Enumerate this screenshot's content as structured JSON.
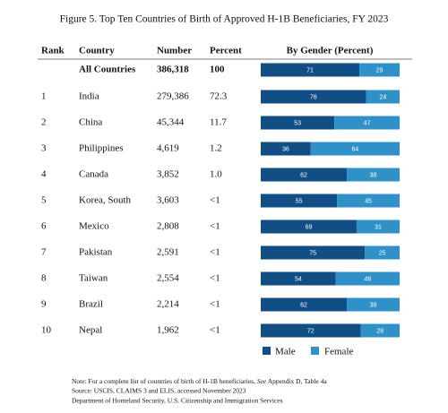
{
  "title": "Figure 5. Top Ten Countries of Birth of Approved H-1B Beneficiaries, FY 2023",
  "headers": {
    "rank": "Rank",
    "country": "Country",
    "number": "Number",
    "percent": "Percent",
    "gender": "By Gender (Percent)"
  },
  "total": {
    "country": "All Countries",
    "number": "386,318",
    "percent": "100",
    "male": 71,
    "female": 29
  },
  "rows": [
    {
      "rank": "1",
      "country": "India",
      "number": "279,386",
      "percent": "72.3",
      "male": 76,
      "female": 24
    },
    {
      "rank": "2",
      "country": "China",
      "number": "45,344",
      "percent": "11.7",
      "male": 53,
      "female": 47
    },
    {
      "rank": "3",
      "country": "Philippines",
      "number": "4,619",
      "percent": "1.2",
      "male": 36,
      "female": 64
    },
    {
      "rank": "4",
      "country": "Canada",
      "number": "3,852",
      "percent": "1.0",
      "male": 62,
      "female": 38
    },
    {
      "rank": "5",
      "country": "Korea, South",
      "number": "3,603",
      "percent": "<1",
      "male": 55,
      "female": 45
    },
    {
      "rank": "6",
      "country": "Mexico",
      "number": "2,808",
      "percent": "<1",
      "male": 69,
      "female": 31
    },
    {
      "rank": "7",
      "country": "Pakistan",
      "number": "2,591",
      "percent": "<1",
      "male": 75,
      "female": 25
    },
    {
      "rank": "8",
      "country": "Taiwan",
      "number": "2,554",
      "percent": "<1",
      "male": 54,
      "female": 46
    },
    {
      "rank": "9",
      "country": "Brazil",
      "number": "2,214",
      "percent": "<1",
      "male": 62,
      "female": 38
    },
    {
      "rank": "10",
      "country": "Nepal",
      "number": "1,962",
      "percent": "<1",
      "male": 72,
      "female": 28
    }
  ],
  "legend": {
    "male": {
      "label": "Male",
      "color": "#104e85"
    },
    "female": {
      "label": "Female",
      "color": "#2f91c8"
    }
  },
  "note": {
    "prefix": "Note: For a complete list of countries of birth of H-1B beneficiaries, ",
    "italic": "See",
    "suffix": " Appendix D, Table 4a"
  },
  "source": "Source: USCIS, CLAIMS 3 and ELIS, accessed November 2023",
  "agency": "Department of Homeland Security, U.S. Citizenship and Immigration Services"
}
